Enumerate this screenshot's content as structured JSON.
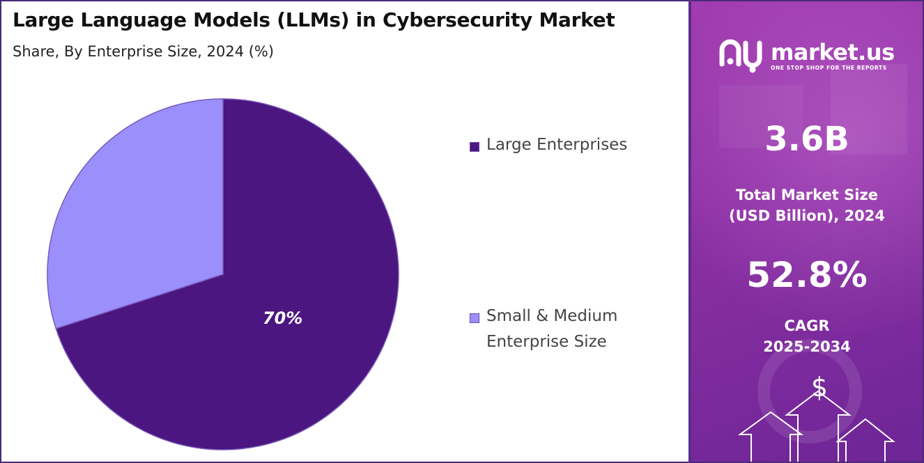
{
  "chart_data": {
    "type": "pie",
    "title": "Large Language Models (LLMs) in Cybersecurity Market",
    "subtitle": "Share, By Enterprise Size, 2024 (%)",
    "slices": [
      {
        "name": "Large Enterprises",
        "value": 70,
        "label": "70%",
        "color": "#4b1680"
      },
      {
        "name": "Small & Medium Enterprise Size",
        "value": 30,
        "label": "",
        "color": "#9b8ffc"
      }
    ],
    "legend_position": "right"
  },
  "legend": {
    "items": [
      {
        "label": "Large Enterprises",
        "color": "#4b1680"
      },
      {
        "label": "Small & Medium Enterprise Size",
        "color": "#9b8ffc"
      }
    ]
  },
  "brand": {
    "name": "market.us",
    "tagline": "ONE STOP SHOP FOR THE REPORTS"
  },
  "stats": {
    "market_size_value": "3.6B",
    "market_size_label_1": "Total Market Size",
    "market_size_label_2": "(USD Billion), 2024",
    "cagr_value": "52.8%",
    "cagr_label_1": "CAGR",
    "cagr_label_2": "2025-2034"
  },
  "decor": {
    "dollar_symbol": "$",
    "icon": "growth-arrows-icon"
  }
}
